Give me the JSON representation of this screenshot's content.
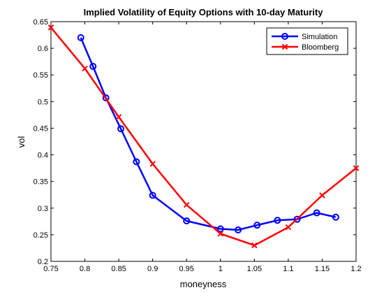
{
  "chart_data": {
    "type": "line",
    "title": "Implied Volatility of Equity Options with 10-day Maturity",
    "xlabel": "moneyness",
    "ylabel": "vol",
    "xlim": [
      0.75,
      1.2
    ],
    "ylim": [
      0.2,
      0.65
    ],
    "xticks": [
      0.75,
      0.8,
      0.85,
      0.9,
      0.95,
      1,
      1.05,
      1.1,
      1.15,
      1.2
    ],
    "xtick_labels": [
      "0.75",
      "0.8",
      "0.85",
      "0.9",
      "0.95",
      "1",
      "1.05",
      "1.1",
      "1.15",
      "1.2"
    ],
    "yticks": [
      0.2,
      0.25,
      0.3,
      0.35,
      0.4,
      0.45,
      0.5,
      0.55,
      0.6,
      0.65
    ],
    "ytick_labels": [
      "0.2",
      "0.25",
      "0.3",
      "0.35",
      "0.4",
      "0.45",
      "0.5",
      "0.55",
      "0.6",
      "0.65"
    ],
    "grid": false,
    "legend_position": "top-right",
    "series": [
      {
        "name": "Simulation",
        "color": "#0000ff",
        "marker": "circle",
        "x": [
          0.794,
          0.812,
          0.831,
          0.853,
          0.876,
          0.9,
          0.95,
          1.0,
          1.026,
          1.054,
          1.084,
          1.113,
          1.142,
          1.17
        ],
        "y": [
          0.62,
          0.566,
          0.507,
          0.449,
          0.387,
          0.324,
          0.276,
          0.261,
          0.259,
          0.268,
          0.277,
          0.279,
          0.291,
          0.283
        ]
      },
      {
        "name": "Bloomberg",
        "color": "#ff0000",
        "marker": "x",
        "x": [
          0.75,
          0.8,
          0.85,
          0.9,
          0.95,
          1.0,
          1.05,
          1.1,
          1.15,
          1.2
        ],
        "y": [
          0.639,
          0.562,
          0.471,
          0.383,
          0.306,
          0.252,
          0.23,
          0.264,
          0.324,
          0.375
        ]
      }
    ]
  }
}
